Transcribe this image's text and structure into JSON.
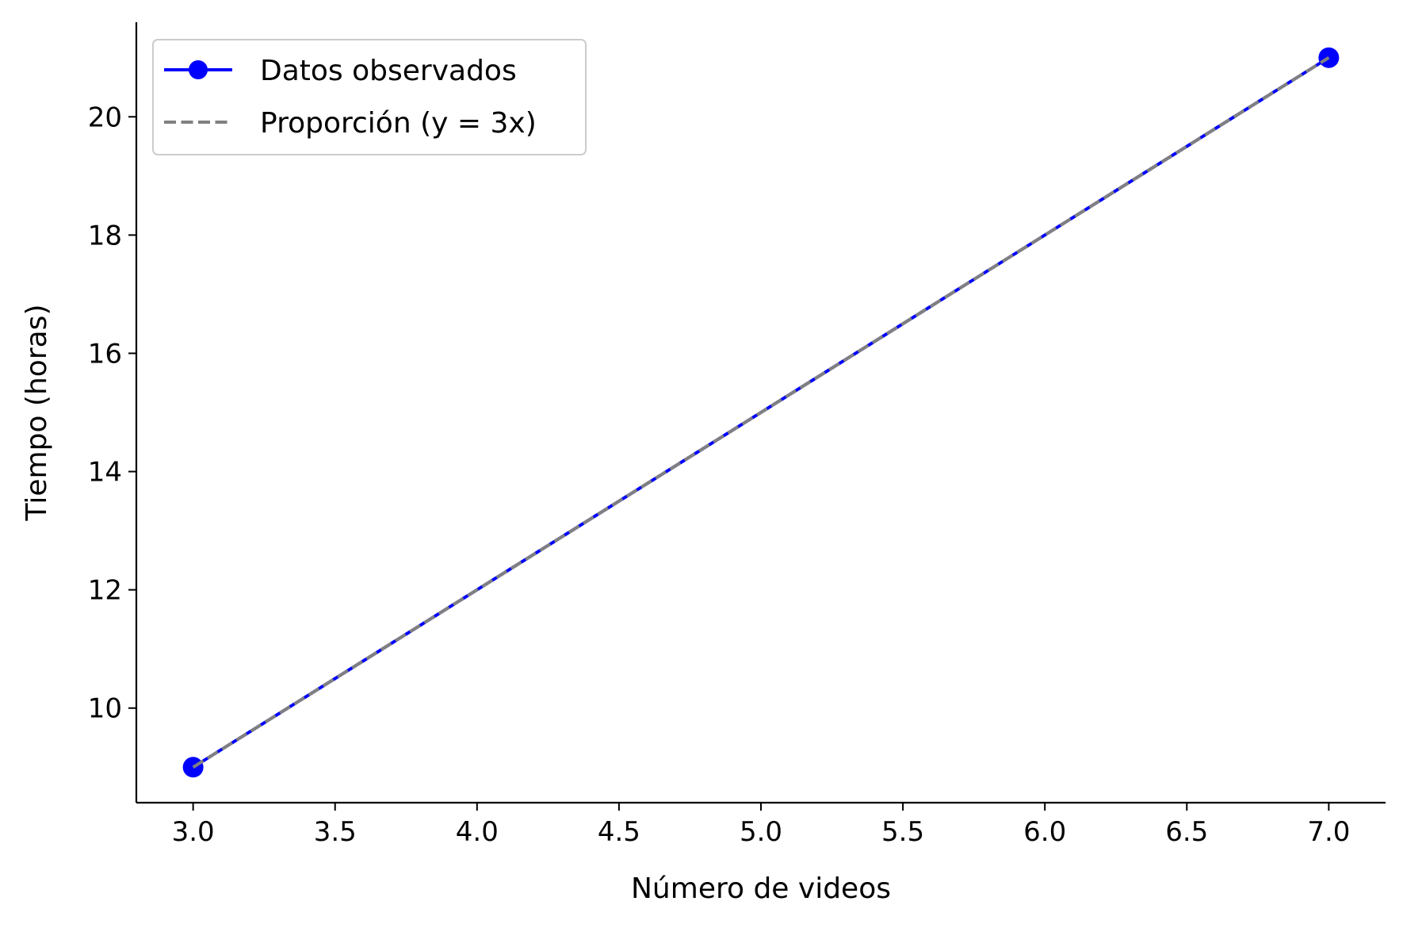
{
  "chart_data": {
    "type": "line",
    "xlabel": "Número de videos",
    "ylabel": "Tiempo (horas)",
    "xlim": [
      2.8,
      7.2
    ],
    "ylim": [
      8.4,
      21.6
    ],
    "xticks": [
      3.0,
      3.5,
      4.0,
      4.5,
      5.0,
      5.5,
      6.0,
      6.5,
      7.0
    ],
    "xtick_labels": [
      "3.0",
      "3.5",
      "4.0",
      "4.5",
      "5.0",
      "5.5",
      "6.0",
      "6.5",
      "7.0"
    ],
    "yticks": [
      10,
      12,
      14,
      16,
      18,
      20
    ],
    "ytick_labels": [
      "10",
      "12",
      "14",
      "16",
      "18",
      "20"
    ],
    "grid": false,
    "legend_position": "top-left",
    "series": [
      {
        "name": "Datos observados",
        "x": [
          3,
          7
        ],
        "y": [
          9,
          21
        ],
        "color": "#0000ff",
        "style": "solid",
        "marker": "circle"
      },
      {
        "name": "Proporción (y = 3x)",
        "x": [
          3,
          7
        ],
        "y": [
          9,
          21
        ],
        "color": "#808080",
        "style": "dashed",
        "marker": "none"
      }
    ]
  }
}
